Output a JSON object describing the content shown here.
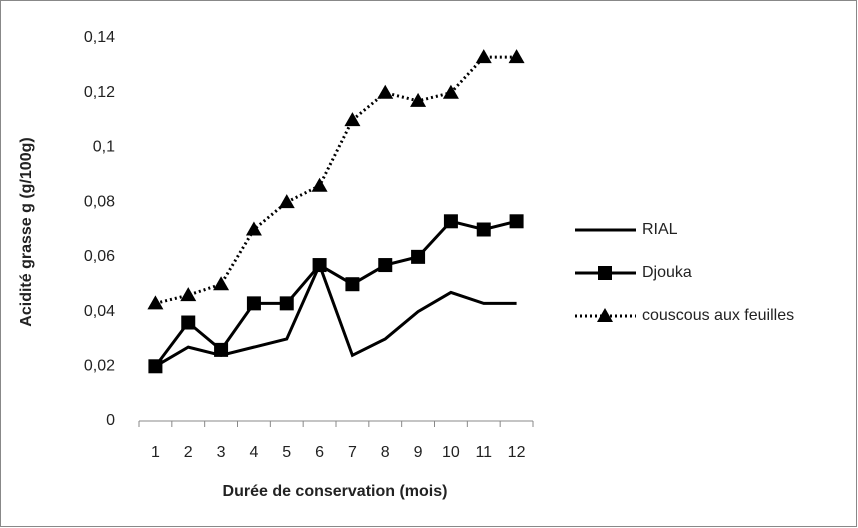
{
  "chart_data": {
    "type": "line",
    "xlabel": "Durée de conservation (mois)",
    "ylabel": "Acidité grasse g (g/100g)",
    "categories": [
      "1",
      "2",
      "3",
      "4",
      "5",
      "6",
      "7",
      "8",
      "9",
      "10",
      "11",
      "12"
    ],
    "series": [
      {
        "name": "RIAL",
        "color": "#000000",
        "style": "solid",
        "marker": "none",
        "values": [
          0.02,
          0.027,
          0.024,
          0.027,
          0.03,
          0.057,
          0.024,
          0.03,
          0.04,
          0.047,
          0.043,
          0.043
        ]
      },
      {
        "name": "Djouka",
        "color": "#000000",
        "style": "solid",
        "marker": "square",
        "values": [
          0.02,
          0.036,
          0.026,
          0.043,
          0.043,
          0.057,
          0.05,
          0.057,
          0.06,
          0.073,
          0.07,
          0.073
        ]
      },
      {
        "name": "couscous aux feuilles",
        "color": "#000000",
        "style": "dotted",
        "marker": "triangle",
        "values": [
          0.043,
          0.046,
          0.05,
          0.07,
          0.08,
          0.086,
          0.11,
          0.12,
          0.117,
          0.12,
          0.133,
          0.133
        ]
      }
    ],
    "ylim": [
      0,
      0.14
    ],
    "yticks": [
      0,
      {
        "value": 0.02,
        "label": "0,02"
      },
      {
        "value": 0.04,
        "label": "0,04"
      },
      {
        "value": 0.06,
        "label": "0,06"
      },
      {
        "value": 0.08,
        "label": "0,08"
      },
      {
        "value": 0.1,
        "label": "0,1"
      },
      {
        "value": 0.12,
        "label": "0,12"
      },
      {
        "value": 0.14,
        "label": "0,14"
      }
    ],
    "legend": "right",
    "grid": false
  }
}
